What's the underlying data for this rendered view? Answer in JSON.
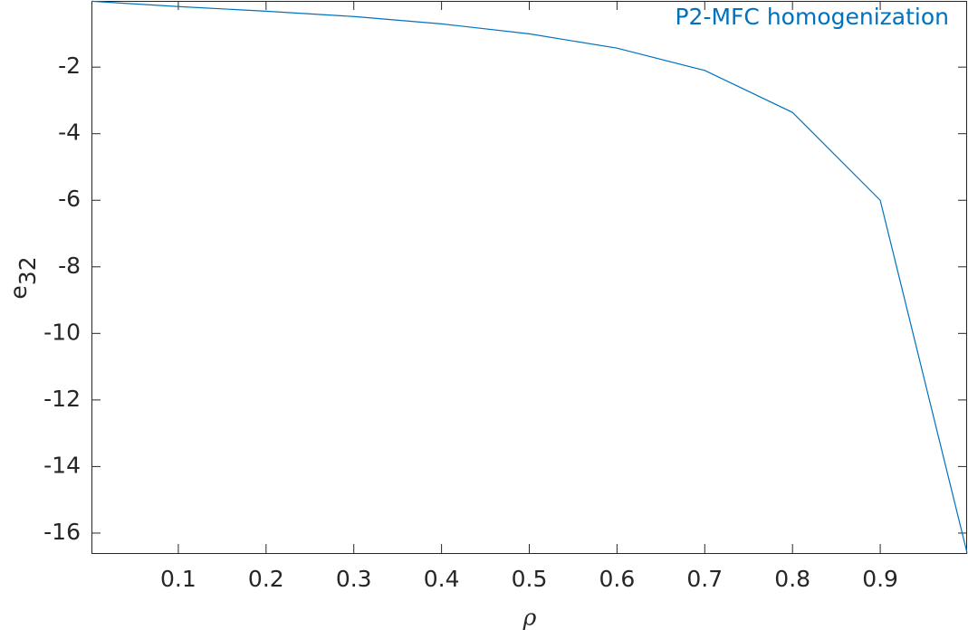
{
  "chart_data": {
    "type": "line",
    "x_label": "ρ",
    "y_label": {
      "base": "e",
      "subscript": "32"
    },
    "x": [
      0.001,
      0.1,
      0.2,
      0.3,
      0.4,
      0.5,
      0.6,
      0.7,
      0.8,
      0.9,
      0.999
    ],
    "series": [
      {
        "name": "P2-MFC homogenization",
        "color": "#0072bd",
        "values": [
          -0.02,
          -0.18,
          -0.32,
          -0.48,
          -0.7,
          -1.0,
          -1.43,
          -2.1,
          -3.36,
          -6.0,
          -16.6
        ]
      }
    ],
    "xlim": [
      0.001,
      0.999
    ],
    "ylim": [
      -16.6,
      -0.01
    ],
    "xticks": [
      0.1,
      0.2,
      0.3,
      0.4,
      0.5,
      0.6,
      0.7,
      0.8,
      0.9
    ],
    "yticks": [
      -16,
      -14,
      -12,
      -10,
      -8,
      -6,
      -4,
      -2
    ],
    "legend": "top-right"
  }
}
